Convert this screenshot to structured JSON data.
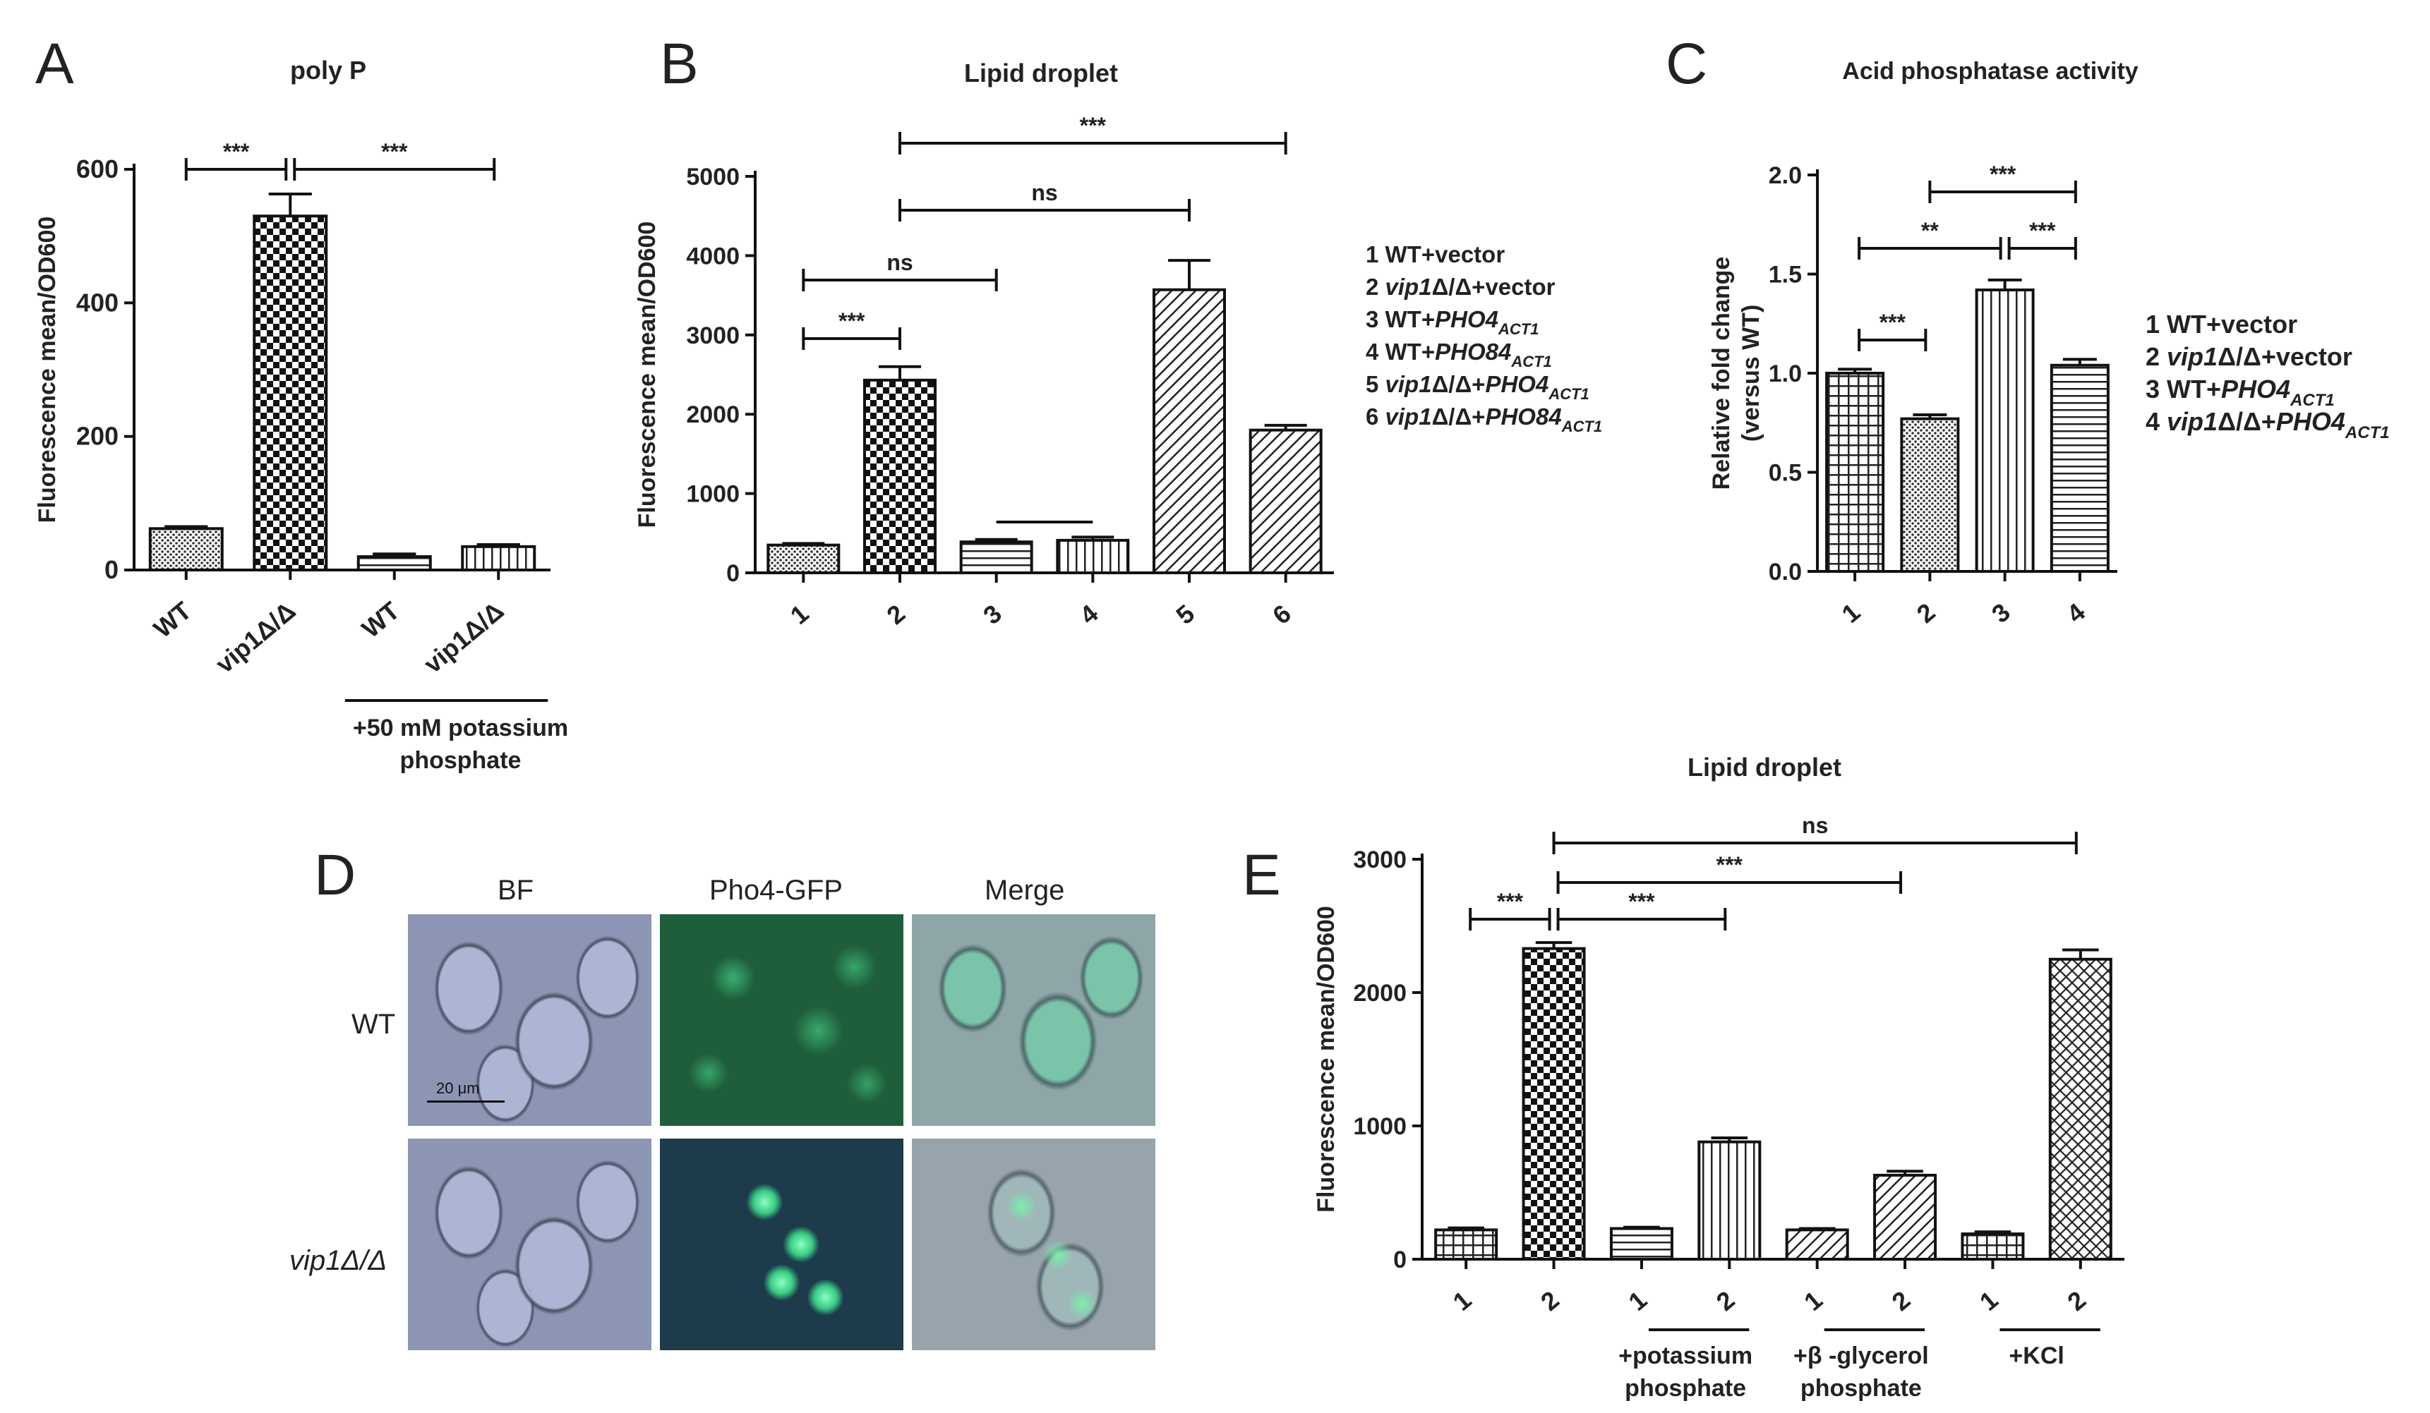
{
  "panel_letters": {
    "a": "A",
    "b": "B",
    "c": "C",
    "d": "D",
    "e": "E"
  },
  "chart_data": [
    {
      "id": "A",
      "type": "bar",
      "title": "poly P",
      "ylabel": "Fluorescence mean/OD600",
      "ylim": [
        0,
        600
      ],
      "yticks": [
        0,
        200,
        400,
        600
      ],
      "categories": [
        "WT",
        "vip1Δ/Δ",
        "WT",
        "vip1Δ/Δ"
      ],
      "values": [
        62,
        530,
        20,
        35
      ],
      "errors": [
        3,
        33,
        4,
        3
      ],
      "patterns": [
        "dots",
        "checker",
        "hlines",
        "vlines"
      ],
      "group_label_lines": [
        "+50 mM potassium",
        "phosphate"
      ],
      "significance": [
        {
          "from": 0,
          "to": 1,
          "label": "***"
        },
        {
          "from": 1,
          "to": 3,
          "label": "***"
        }
      ]
    },
    {
      "id": "B",
      "type": "bar",
      "title": "Lipid droplet",
      "ylabel": "Fluorescence mean/OD600",
      "ylim": [
        0,
        5000
      ],
      "yticks": [
        0,
        1000,
        2000,
        3000,
        4000,
        5000
      ],
      "categories": [
        "1",
        "2",
        "3",
        "4",
        "5",
        "6"
      ],
      "values": [
        350,
        2430,
        390,
        410,
        3570,
        1800
      ],
      "errors": [
        20,
        170,
        30,
        40,
        370,
        60
      ],
      "patterns": [
        "dots",
        "checker",
        "hlines",
        "vlines",
        "diag",
        "diag"
      ],
      "legend": [
        {
          "num": "1",
          "parts": [
            {
              "t": "WT+vector",
              "i": false
            }
          ],
          "sub": ""
        },
        {
          "num": "2",
          "parts": [
            {
              "t": "vip1",
              "i": true
            },
            {
              "t": "Δ/Δ+vector",
              "i": false
            }
          ],
          "sub": ""
        },
        {
          "num": "3",
          "parts": [
            {
              "t": "WT+",
              "i": false
            },
            {
              "t": "PHO4",
              "i": true
            }
          ],
          "sub": "ACT1"
        },
        {
          "num": "4",
          "parts": [
            {
              "t": "WT+",
              "i": false
            },
            {
              "t": "PHO84",
              "i": true
            }
          ],
          "sub": "ACT1"
        },
        {
          "num": "5",
          "parts": [
            {
              "t": "vip1",
              "i": true
            },
            {
              "t": "Δ/Δ+",
              "i": false
            },
            {
              "t": "PHO4",
              "i": true
            }
          ],
          "sub": "ACT1"
        },
        {
          "num": "6",
          "parts": [
            {
              "t": "vip1",
              "i": true
            },
            {
              "t": "Δ/Δ+",
              "i": false
            },
            {
              "t": "PHO84",
              "i": true
            }
          ],
          "sub": "ACT1"
        }
      ],
      "significance": [
        {
          "from": 1,
          "to": 5,
          "label": "***"
        },
        {
          "from": 1,
          "to": 4,
          "label": "ns"
        },
        {
          "from": 0,
          "to": 2,
          "label": "ns"
        },
        {
          "from": 0,
          "to": 1,
          "label": "***"
        },
        {
          "from": 2,
          "to": 3,
          "label": ""
        }
      ]
    },
    {
      "id": "C",
      "type": "bar",
      "title": "Acid phosphatase activity",
      "ylabel_lines": [
        "Relative fold change",
        "(versus WT)"
      ],
      "ylim": [
        0,
        2.0
      ],
      "yticks": [
        "0.0",
        "0.5",
        "1.0",
        "1.5",
        "2.0"
      ],
      "categories": [
        "1",
        "2",
        "3",
        "4"
      ],
      "values": [
        1.0,
        0.77,
        1.42,
        1.04
      ],
      "errors": [
        0.02,
        0.02,
        0.05,
        0.03
      ],
      "patterns": [
        "grid",
        "dots",
        "vlines",
        "hlines"
      ],
      "legend": [
        {
          "num": "1",
          "parts": [
            {
              "t": "WT+vector",
              "i": false
            }
          ],
          "sub": ""
        },
        {
          "num": "2",
          "parts": [
            {
              "t": "vip1",
              "i": true
            },
            {
              "t": "Δ/Δ+vector",
              "i": false
            }
          ],
          "sub": ""
        },
        {
          "num": "3",
          "parts": [
            {
              "t": "WT+",
              "i": false
            },
            {
              "t": "PHO4",
              "i": true
            }
          ],
          "sub": "ACT1"
        },
        {
          "num": "4",
          "parts": [
            {
              "t": "vip1",
              "i": true
            },
            {
              "t": "Δ/Δ+",
              "i": false
            },
            {
              "t": "PHO4",
              "i": true
            }
          ],
          "sub": "ACT1"
        }
      ],
      "significance": [
        {
          "from": 1,
          "to": 3,
          "label": "***"
        },
        {
          "from": 0,
          "to": 2,
          "label": "**"
        },
        {
          "from": 2,
          "to": 3,
          "label": "***"
        },
        {
          "from": 0,
          "to": 1,
          "label": "***"
        }
      ]
    },
    {
      "id": "E",
      "type": "bar",
      "title": "Lipid droplet",
      "ylabel": "Fluorescence mean/OD600",
      "ylim": [
        0,
        3000
      ],
      "yticks": [
        0,
        1000,
        2000,
        3000
      ],
      "categories": [
        "1",
        "2",
        "1",
        "2",
        "1",
        "2",
        "1",
        "2"
      ],
      "values": [
        220,
        2330,
        230,
        880,
        220,
        630,
        190,
        2250
      ],
      "errors": [
        15,
        45,
        10,
        30,
        10,
        30,
        15,
        70
      ],
      "patterns": [
        "grid",
        "checker",
        "hlines",
        "vlines",
        "diag",
        "diag",
        "grid",
        "crossdiag"
      ],
      "groups": [
        {
          "from": 2,
          "to": 3,
          "lines": [
            "+potassium",
            "phosphate"
          ]
        },
        {
          "from": 4,
          "to": 5,
          "lines": [
            "+β -glycerol",
            "phosphate"
          ]
        },
        {
          "from": 6,
          "to": 7,
          "lines": [
            "+KCl"
          ]
        }
      ],
      "significance": [
        {
          "from": 1,
          "to": 7,
          "label": "ns"
        },
        {
          "from": 1,
          "to": 5,
          "label": "***"
        },
        {
          "from": 1,
          "to": 3,
          "label": "***"
        },
        {
          "from": 0,
          "to": 1,
          "label": "***"
        }
      ]
    }
  ],
  "microscopy": {
    "columns": [
      "BF",
      "Pho4-GFP",
      "Merge"
    ],
    "rows": [
      "WT",
      "vip1Δ/Δ"
    ],
    "scale_bar": "20 μm"
  }
}
